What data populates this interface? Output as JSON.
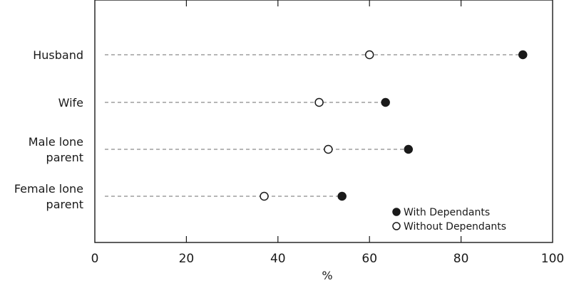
{
  "chart_data": {
    "type": "scatter",
    "categories": [
      "Husband",
      "Wife",
      "Male lone parent",
      "Female lone parent"
    ],
    "category_lines": [
      [
        "Husband"
      ],
      [
        "Wife"
      ],
      [
        "Male lone",
        "parent"
      ],
      [
        "Female lone",
        "parent"
      ]
    ],
    "series": [
      {
        "name": "With Dependants",
        "marker": "filled",
        "values": [
          93.5,
          63.5,
          68.5,
          54
        ]
      },
      {
        "name": "Without Dependants",
        "marker": "open",
        "values": [
          60,
          49,
          51,
          37
        ]
      }
    ],
    "xlabel": "%",
    "ylabel": "",
    "xlim": [
      0,
      100
    ],
    "xticks": [
      0,
      20,
      40,
      60,
      80,
      100
    ],
    "xtick_labels": [
      "0",
      "20",
      "40",
      "60",
      "80",
      "100"
    ],
    "grid": false,
    "legend_position": "bottom-right",
    "colors": {
      "ink": "#1a1a1a",
      "guide": "#8a8a8a",
      "background": "#ffffff"
    }
  }
}
